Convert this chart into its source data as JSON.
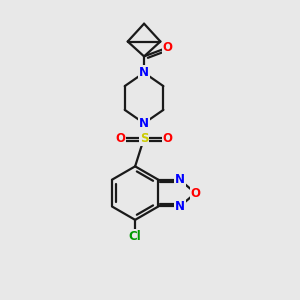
{
  "bg_color": "#e8e8e8",
  "bond_color": "#1a1a1a",
  "N_color": "#0000ff",
  "O_color": "#ff0000",
  "S_color": "#cccc00",
  "Cl_color": "#009900",
  "line_width": 1.6,
  "font_size": 8.5,
  "fig_width": 3.0,
  "fig_height": 3.0,
  "dpi": 100,
  "xlim": [
    0,
    10
  ],
  "ylim": [
    0,
    10
  ]
}
